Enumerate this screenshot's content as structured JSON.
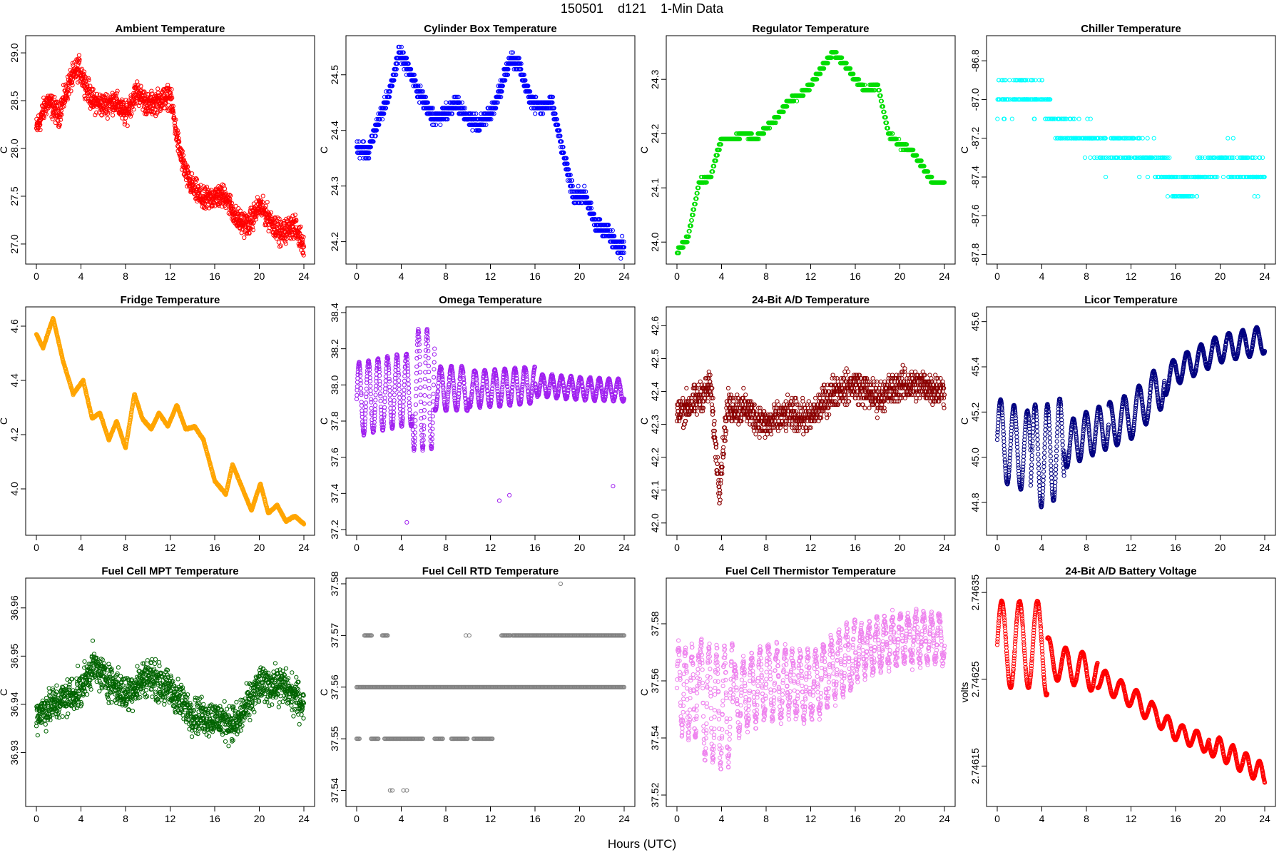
{
  "figure": {
    "title": "150501    d121    1-Min Data",
    "xlabel": "Hours (UTC)"
  },
  "chart_data": [
    {
      "type": "scatter",
      "title": "Ambient Temperature",
      "ylabel": "C",
      "color": "#ff0000",
      "xlim": [
        0,
        24
      ],
      "ylim": [
        26.85,
        29.12
      ],
      "xticks": [
        0,
        4,
        8,
        12,
        16,
        20,
        24
      ],
      "yticks": [
        "27.0",
        "27.5",
        "28.0",
        "28.5",
        "29.0"
      ],
      "x": [
        0,
        1,
        2,
        3,
        3.8,
        5,
        6,
        7,
        8,
        9,
        10,
        11,
        12,
        12.8,
        13.5,
        14,
        15,
        16,
        17,
        18,
        19,
        20,
        21,
        22,
        23,
        24
      ],
      "y": [
        28.2,
        28.5,
        28.35,
        28.7,
        28.85,
        28.5,
        28.45,
        28.5,
        28.35,
        28.6,
        28.45,
        28.5,
        28.55,
        28.0,
        27.7,
        27.6,
        27.45,
        27.5,
        27.5,
        27.25,
        27.2,
        27.4,
        27.25,
        27.1,
        27.2,
        27.0
      ],
      "noise": 0.18
    },
    {
      "type": "scatter",
      "title": "Cylinder Box Temperature",
      "ylabel": "C",
      "color": "#0000ff",
      "xlim": [
        0,
        24
      ],
      "ylim": [
        24.17,
        24.56
      ],
      "xticks": [
        0,
        4,
        8,
        12,
        16,
        20,
        24
      ],
      "yticks": [
        "24.2",
        "24.3",
        "24.4",
        "24.5"
      ],
      "x": [
        0,
        1,
        2,
        3,
        3.8,
        4.5,
        5.5,
        7,
        8,
        9,
        10,
        11,
        12,
        13,
        13.8,
        14.5,
        15.5,
        16.5,
        17.5,
        18.5,
        19.5,
        20.5,
        21.5,
        22.5,
        23.5,
        24
      ],
      "y": [
        24.37,
        24.36,
        24.42,
        24.47,
        24.54,
        24.52,
        24.47,
        24.42,
        24.43,
        24.45,
        24.42,
        24.41,
        24.43,
        24.48,
        24.53,
        24.52,
        24.46,
        24.44,
        24.45,
        24.36,
        24.28,
        24.28,
        24.23,
        24.22,
        24.19,
        24.19
      ],
      "noise": 0.02,
      "quant": 0.01
    },
    {
      "type": "scatter",
      "title": "Regulator Temperature",
      "ylabel": "C",
      "color": "#00dd00",
      "xlim": [
        0,
        24
      ],
      "ylim": [
        23.97,
        24.37
      ],
      "xticks": [
        0,
        4,
        8,
        12,
        16,
        20,
        24
      ],
      "yticks": [
        "24.0",
        "24.1",
        "24.2",
        "24.3"
      ],
      "x": [
        0,
        1,
        2,
        3,
        4,
        5,
        6,
        7,
        8,
        9,
        10,
        11,
        12,
        13,
        14,
        15,
        16,
        17,
        18,
        19,
        20,
        21,
        22,
        23,
        24
      ],
      "y": [
        23.98,
        24.01,
        24.11,
        24.12,
        24.19,
        24.19,
        24.2,
        24.19,
        24.21,
        24.23,
        24.26,
        24.27,
        24.29,
        24.32,
        24.35,
        24.33,
        24.3,
        24.28,
        24.29,
        24.2,
        24.18,
        24.17,
        24.14,
        24.11,
        24.11
      ],
      "noise": 0.005,
      "quant": 0.01
    },
    {
      "type": "scatter",
      "title": "Chiller Temperature",
      "ylabel": "C",
      "color": "#00ffff",
      "xlim": [
        0,
        24
      ],
      "ylim": [
        -87.82,
        -86.7
      ],
      "xticks": [
        0,
        4,
        8,
        12,
        16,
        20,
        24
      ],
      "yticks": [
        "-87.8",
        "-87.6",
        "-87.4",
        "-87.2",
        "-87.0",
        "-86.8"
      ],
      "x": [
        0,
        2,
        4,
        5,
        6,
        8,
        10,
        12,
        14,
        15,
        16,
        17,
        18,
        20,
        22,
        24
      ],
      "y": [
        -87.0,
        -86.95,
        -87.0,
        -87.1,
        -87.15,
        -87.2,
        -87.25,
        -87.25,
        -87.3,
        -87.35,
        -87.45,
        -87.45,
        -87.4,
        -87.3,
        -87.35,
        -87.4
      ],
      "noise": 0.12,
      "quant": 0.1,
      "sparse": true
    },
    {
      "type": "scatter",
      "title": "Fridge Temperature",
      "ylabel": "C",
      "color": "#ffa500",
      "xlim": [
        0,
        24
      ],
      "ylim": [
        3.85,
        4.65
      ],
      "xticks": [
        0,
        4,
        8,
        12,
        16,
        20,
        24
      ],
      "yticks": [
        "4.0",
        "4.2",
        "4.4",
        "4.6"
      ],
      "x": [
        0,
        0.6,
        1.5,
        2.4,
        3.3,
        4.2,
        5,
        5.7,
        6.5,
        7.2,
        8,
        8.8,
        9.5,
        10.3,
        11,
        11.8,
        12.6,
        13.4,
        14.2,
        15,
        16,
        17,
        17.6,
        18.5,
        19.3,
        20.1,
        20.8,
        21.6,
        22.4,
        23.2,
        24
      ],
      "y": [
        4.57,
        4.52,
        4.63,
        4.47,
        4.35,
        4.4,
        4.26,
        4.28,
        4.18,
        4.25,
        4.15,
        4.35,
        4.26,
        4.22,
        4.28,
        4.23,
        4.31,
        4.22,
        4.23,
        4.18,
        4.03,
        3.98,
        4.09,
        4.0,
        3.92,
        4.02,
        3.91,
        3.94,
        3.88,
        3.9,
        3.87
      ],
      "noise": 0.004
    },
    {
      "type": "scatter",
      "title": "Omega Temperature",
      "ylabel": "C",
      "color": "#a020f0",
      "xlim": [
        0,
        24
      ],
      "ylim": [
        37.2,
        38.4
      ],
      "xticks": [
        0,
        4,
        8,
        12,
        16,
        20,
        24
      ],
      "yticks": [
        "37.2",
        "37.4",
        "37.6",
        "37.8",
        "38.0",
        "38.2",
        "38.4"
      ],
      "x": [
        0,
        4,
        8,
        12,
        16,
        20,
        24
      ],
      "y": [
        37.92,
        37.97,
        37.98,
        37.98,
        38.0,
        37.98,
        37.97
      ],
      "osc": {
        "periods": [
          0.85,
          0.78,
          0.95,
          0.9,
          0.85,
          0.88
        ],
        "amps": [
          0.2,
          0.33,
          0.12,
          0.1,
          0.06,
          0.09
        ],
        "breaks": [
          0,
          5,
          7,
          10,
          16,
          24
        ]
      },
      "noise": 0.01,
      "outliers": [
        [
          4.5,
          37.24
        ],
        [
          12.8,
          37.36
        ],
        [
          13.7,
          37.39
        ],
        [
          23,
          37.44
        ]
      ]
    },
    {
      "type": "scatter",
      "title": "24-Bit A/D Temperature",
      "ylabel": "C",
      "color": "#8b0000",
      "xlim": [
        0,
        24
      ],
      "ylim": [
        41.98,
        42.64
      ],
      "xticks": [
        0,
        4,
        8,
        12,
        16,
        20,
        24
      ],
      "yticks": [
        "42.0",
        "42.1",
        "42.2",
        "42.3",
        "42.4",
        "42.5",
        "42.6"
      ],
      "x": [
        0,
        2,
        3,
        3.8,
        4.5,
        6,
        8,
        10,
        12,
        14,
        16,
        18,
        20,
        22,
        24
      ],
      "y": [
        42.33,
        42.38,
        42.42,
        42.1,
        42.35,
        42.35,
        42.3,
        42.33,
        42.32,
        42.4,
        42.42,
        42.38,
        42.42,
        42.42,
        42.4
      ],
      "noise": 0.07,
      "quant": 0.01
    },
    {
      "type": "scatter",
      "title": "Licor Temperature",
      "ylabel": "C",
      "color": "#000080",
      "xlim": [
        0,
        24
      ],
      "ylim": [
        44.68,
        45.64
      ],
      "xticks": [
        0,
        4,
        8,
        12,
        16,
        20,
        24
      ],
      "yticks": [
        "44.8",
        "45.0",
        "45.2",
        "45.4",
        "45.6"
      ],
      "x": [
        0,
        4,
        8,
        12,
        16,
        20,
        24
      ],
      "y": [
        45.08,
        45.0,
        45.1,
        45.18,
        45.38,
        45.48,
        45.52
      ],
      "osc": {
        "periods": [
          1.2,
          1.1,
          1.15,
          1.3,
          1.25,
          1.2
        ],
        "amps": [
          0.18,
          0.22,
          0.1,
          0.1,
          0.06,
          0.08
        ],
        "breaks": [
          0,
          3,
          6,
          10,
          15,
          24
        ]
      },
      "noise": 0.004
    },
    {
      "type": "scatter",
      "title": "Fuel Cell MPT Temperature",
      "ylabel": "C",
      "color": "#006400",
      "xlim": [
        0,
        24
      ],
      "ylim": [
        36.92,
        36.965
      ],
      "xticks": [
        0,
        4,
        8,
        12,
        16,
        20,
        24
      ],
      "yticks": [
        "36.93",
        "36.94",
        "36.95",
        "36.96"
      ],
      "x": [
        0,
        4,
        5,
        8,
        10,
        12,
        14,
        16,
        18,
        20,
        22,
        24
      ],
      "y": [
        36.938,
        36.943,
        36.948,
        36.942,
        36.946,
        36.943,
        36.938,
        36.937,
        36.936,
        36.944,
        36.944,
        36.94
      ],
      "noise": 0.0055
    },
    {
      "type": "scatter",
      "title": "Fuel Cell RTD Temperature",
      "ylabel": "C",
      "color": "#808080",
      "xlim": [
        0,
        24
      ],
      "ylim": [
        37.538,
        37.58
      ],
      "xticks": [
        0,
        4,
        8,
        12,
        16,
        20,
        24
      ],
      "yticks": [
        "37.54",
        "37.55",
        "37.56",
        "37.57",
        "37.58"
      ],
      "levels": [
        {
          "y": 37.57,
          "segments": [
            [
              0.7,
              1.4
            ],
            [
              2.3,
              2.8
            ],
            [
              13,
              13.8
            ],
            [
              14,
              24
            ]
          ]
        },
        {
          "y": 37.56,
          "segments": [
            [
              0,
              24
            ]
          ]
        },
        {
          "y": 37.55,
          "segments": [
            [
              0,
              0.3
            ],
            [
              1.3,
              2
            ],
            [
              2.5,
              6
            ],
            [
              7,
              7.8
            ],
            [
              8.5,
              10
            ],
            [
              10.5,
              12.2
            ]
          ]
        }
      ],
      "outliers": [
        [
          3,
          37.54
        ],
        [
          3.2,
          37.54
        ],
        [
          4.2,
          37.54
        ],
        [
          4.5,
          37.54
        ],
        [
          18.3,
          37.58
        ],
        [
          9.8,
          37.57
        ],
        [
          10.1,
          37.57
        ]
      ]
    },
    {
      "type": "scatter",
      "title": "Fuel Cell Thermistor Temperature",
      "ylabel": "C",
      "color": "#ee82ee",
      "xlim": [
        0,
        24
      ],
      "ylim": [
        37.518,
        37.594
      ],
      "xticks": [
        0,
        4,
        8,
        12,
        16,
        20,
        24
      ],
      "yticks": [
        "37.52",
        "37.54",
        "37.56",
        "37.58"
      ],
      "x": [
        0,
        4,
        8,
        12,
        16,
        20,
        24
      ],
      "y": [
        37.558,
        37.55,
        37.56,
        37.558,
        37.57,
        37.575,
        37.575
      ],
      "osc": {
        "periods": [
          0.6,
          0.7,
          0.75,
          0.7,
          0.7,
          0.7
        ],
        "amps": [
          0.015,
          0.02,
          0.012,
          0.011,
          0.008,
          0.01
        ],
        "breaks": [
          0,
          2,
          5,
          10,
          16,
          24
        ]
      },
      "noise": 0.004
    },
    {
      "type": "scatter",
      "title": "24-Bit A/D Battery Voltage",
      "ylabel": "volts",
      "color": "#ff0000",
      "xlim": [
        0,
        24
      ],
      "ylim": [
        2.74611,
        2.74636
      ],
      "xticks": [
        0,
        4,
        8,
        12,
        16,
        20,
        24
      ],
      "yticks": [
        "2.74615",
        "2.74625",
        "2.74635"
      ],
      "x": [
        0,
        2,
        4,
        5,
        8,
        12,
        16,
        20,
        24
      ],
      "y": [
        2.74629,
        2.74629,
        2.74629,
        2.74627,
        2.74626,
        2.74623,
        2.74619,
        2.74617,
        2.74614
      ],
      "osc": {
        "periods": [
          1.6,
          1.5,
          1.4,
          1.3,
          1.2,
          1.2
        ],
        "amps": [
          5e-05,
          2e-05,
          1.2e-05,
          1e-05,
          1.2e-05,
          1e-05
        ],
        "breaks": [
          0,
          4.5,
          9,
          14,
          19,
          24
        ]
      },
      "noise": 1e-06
    }
  ]
}
